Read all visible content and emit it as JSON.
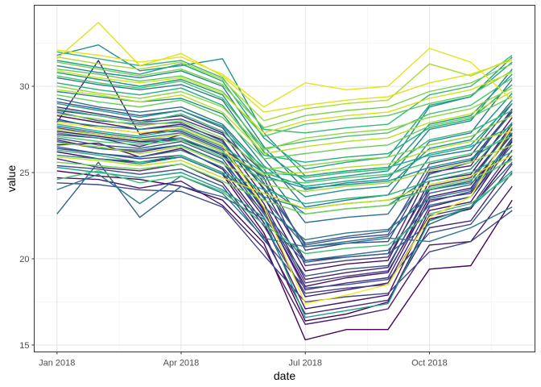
{
  "chart_data": {
    "type": "line",
    "title": "",
    "xlabel": "date",
    "ylabel": "value",
    "x_is_month_index": true,
    "x_months": [
      "2018-01",
      "2018-02",
      "2018-03",
      "2018-04",
      "2018-05",
      "2018-06",
      "2018-07",
      "2018-08",
      "2018-09",
      "2018-10",
      "2018-11",
      "2018-12"
    ],
    "x_ticks": [
      {
        "label": "Jan 2018",
        "x": 0
      },
      {
        "label": "Apr 2018",
        "x": 3
      },
      {
        "label": "Jul 2018",
        "x": 6
      },
      {
        "label": "Oct 2018",
        "x": 9
      }
    ],
    "x_minor_ticks": [
      1.5,
      4.5,
      7.5,
      10.5
    ],
    "xlim": [
      -0.55,
      11.55
    ],
    "ylim": [
      14.6,
      34.7
    ],
    "y_ticks": [
      15,
      20,
      25,
      30
    ],
    "y_minor_ticks": [
      17.5,
      22.5,
      27.5,
      32.5
    ],
    "grid": true,
    "legend": "none",
    "color_scale": "viridis",
    "series": [
      {
        "name": "s1",
        "color": "#440154",
        "values": [
          26.2,
          25.8,
          25.6,
          25.9,
          24.9,
          21.5,
          16.4,
          16.8,
          17.5,
          22.3,
          22.9,
          26.0
        ]
      },
      {
        "name": "s2",
        "color": "#450559",
        "values": [
          25.1,
          24.8,
          24.6,
          24.2,
          23.4,
          20.9,
          15.3,
          15.9,
          15.9,
          19.4,
          19.6,
          23.4
        ]
      },
      {
        "name": "s3",
        "color": "#460b5e",
        "values": [
          27.4,
          27.1,
          26.8,
          26.9,
          26.1,
          22.8,
          18.4,
          18.9,
          19.2,
          23.6,
          24.1,
          27.3
        ]
      },
      {
        "name": "s4",
        "color": "#471063",
        "values": [
          28.3,
          27.9,
          27.5,
          27.8,
          26.9,
          23.6,
          19.3,
          19.7,
          19.9,
          24.5,
          24.9,
          28.2
        ]
      },
      {
        "name": "s5",
        "color": "#471566",
        "values": [
          26.6,
          26.7,
          25.9,
          26.4,
          25.2,
          22.1,
          17.1,
          17.5,
          17.9,
          22.8,
          23.3,
          26.8
        ]
      },
      {
        "name": "s6",
        "color": "#481a6c",
        "values": [
          24.7,
          24.6,
          24.1,
          24.5,
          23.1,
          20.6,
          16.2,
          16.6,
          17.1,
          20.8,
          21.0,
          24.2
        ]
      },
      {
        "name": "s7",
        "color": "#481f70",
        "values": [
          27.9,
          31.5,
          27.2,
          27.6,
          26.6,
          23.2,
          18.8,
          19.2,
          19.5,
          24.0,
          24.5,
          27.8
        ]
      },
      {
        "name": "s8",
        "color": "#472374",
        "values": [
          26.9,
          26.4,
          26.2,
          26.6,
          25.6,
          22.4,
          17.8,
          18.2,
          18.6,
          23.0,
          23.6,
          26.9
        ]
      },
      {
        "name": "s9",
        "color": "#472777",
        "values": [
          28.8,
          28.4,
          28.0,
          28.3,
          27.3,
          24.0,
          19.9,
          20.1,
          20.3,
          25.0,
          25.4,
          28.7
        ]
      },
      {
        "name": "s10",
        "color": "#462b7a",
        "values": [
          25.8,
          25.3,
          25.1,
          25.5,
          24.4,
          21.3,
          16.8,
          17.2,
          17.6,
          21.8,
          22.2,
          25.5
        ]
      },
      {
        "name": "s11",
        "color": "#46307e",
        "values": [
          27.2,
          27.0,
          26.5,
          27.2,
          26.2,
          22.9,
          18.2,
          18.6,
          18.9,
          23.4,
          23.8,
          27.0
        ]
      },
      {
        "name": "s12",
        "color": "#453781",
        "values": [
          28.1,
          27.6,
          27.3,
          27.4,
          26.4,
          24.7,
          19.6,
          19.9,
          20.1,
          24.2,
          24.7,
          27.6
        ]
      },
      {
        "name": "s13",
        "color": "#433e85",
        "values": [
          26.4,
          26.1,
          25.8,
          26.0,
          25.0,
          21.9,
          18.0,
          18.3,
          18.5,
          22.5,
          23.0,
          26.3
        ]
      },
      {
        "name": "s14",
        "color": "#424186",
        "values": [
          27.6,
          27.2,
          26.9,
          27.0,
          26.0,
          23.0,
          18.6,
          19.0,
          19.3,
          23.3,
          23.9,
          27.5
        ]
      },
      {
        "name": "s15",
        "color": "#414487",
        "values": [
          28.6,
          28.3,
          27.9,
          28.1,
          27.2,
          25.0,
          20.5,
          20.9,
          21.0,
          25.2,
          25.7,
          28.6
        ]
      },
      {
        "name": "s16",
        "color": "#3e4989",
        "values": [
          24.4,
          24.3,
          24.0,
          23.9,
          23.0,
          20.2,
          17.5,
          17.8,
          18.0,
          20.4,
          21.0,
          22.8
        ]
      },
      {
        "name": "s17",
        "color": "#3c4f8a",
        "values": [
          29.1,
          28.7,
          28.3,
          28.6,
          27.6,
          24.4,
          20.8,
          21.2,
          21.4,
          25.5,
          26.0,
          29.0
        ]
      },
      {
        "name": "s18",
        "color": "#3b518b",
        "values": [
          25.4,
          25.2,
          24.9,
          25.2,
          24.2,
          21.1,
          18.3,
          18.5,
          18.8,
          21.5,
          22.0,
          25.0
        ]
      },
      {
        "name": "s19",
        "color": "#38588c",
        "values": [
          27.0,
          26.6,
          26.4,
          26.8,
          25.8,
          22.6,
          19.0,
          19.4,
          19.6,
          23.8,
          24.3,
          27.2
        ]
      },
      {
        "name": "s20",
        "color": "#355f8d",
        "values": [
          28.5,
          28.0,
          27.8,
          27.9,
          26.8,
          24.1,
          20.9,
          21.3,
          21.6,
          24.9,
          25.6,
          28.5
        ]
      },
      {
        "name": "s21",
        "color": "#33638d",
        "values": [
          22.6,
          25.6,
          22.4,
          24.2,
          23.6,
          22.3,
          19.8,
          20.1,
          20.3,
          22.0,
          23.0,
          25.6
        ]
      },
      {
        "name": "s22",
        "color": "#31688e",
        "values": [
          26.5,
          26.1,
          25.9,
          26.3,
          25.3,
          22.7,
          19.9,
          20.2,
          20.5,
          23.1,
          23.6,
          26.6
        ]
      },
      {
        "name": "s23",
        "color": "#2f6c8e",
        "values": [
          27.7,
          27.3,
          27.0,
          27.3,
          26.3,
          23.5,
          20.7,
          21.0,
          21.3,
          24.0,
          24.5,
          27.6
        ]
      },
      {
        "name": "s24",
        "color": "#2d718e",
        "values": [
          29.3,
          28.8,
          28.5,
          28.8,
          27.8,
          25.2,
          22.1,
          22.4,
          22.6,
          25.9,
          26.3,
          29.2
        ]
      },
      {
        "name": "s25",
        "color": "#2b758e",
        "values": [
          24.0,
          24.9,
          23.2,
          24.8,
          23.8,
          21.2,
          20.7,
          20.9,
          21.2,
          21.0,
          21.8,
          23.0
        ]
      },
      {
        "name": "s26",
        "color": "#2a788e",
        "values": [
          26.8,
          26.4,
          26.3,
          26.6,
          25.6,
          23.0,
          21.1,
          21.5,
          21.7,
          23.5,
          24.0,
          26.9
        ]
      },
      {
        "name": "s27",
        "color": "#287c8e",
        "values": [
          30.5,
          30.1,
          29.8,
          30.1,
          29.2,
          25.8,
          23.0,
          23.4,
          23.7,
          26.8,
          27.3,
          30.4
        ]
      },
      {
        "name": "s28",
        "color": "#26828e",
        "values": [
          28.0,
          27.7,
          27.5,
          27.7,
          26.7,
          24.3,
          22.6,
          22.9,
          23.1,
          24.7,
          25.2,
          27.9
        ]
      },
      {
        "name": "s29",
        "color": "#25858e",
        "values": [
          31.2,
          30.8,
          30.5,
          30.9,
          30.0,
          26.5,
          24.0,
          24.4,
          24.6,
          27.5,
          28.0,
          31.0
        ]
      },
      {
        "name": "s30",
        "color": "#23898e",
        "values": [
          26.0,
          25.8,
          25.5,
          25.9,
          24.9,
          23.6,
          22.9,
          23.2,
          23.4,
          24.0,
          24.4,
          25.8
        ]
      },
      {
        "name": "s31",
        "color": "#228d8d",
        "values": [
          29.7,
          29.4,
          29.1,
          29.3,
          28.4,
          25.4,
          23.6,
          24.0,
          24.2,
          26.4,
          26.9,
          29.6
        ]
      },
      {
        "name": "s32",
        "color": "#21908d",
        "values": [
          31.8,
          32.4,
          30.9,
          31.2,
          31.6,
          27.3,
          24.8,
          25.1,
          25.3,
          28.8,
          29.4,
          31.7
        ]
      },
      {
        "name": "s33",
        "color": "#1f948c",
        "values": [
          27.3,
          27.0,
          26.7,
          27.0,
          26.1,
          24.8,
          24.1,
          24.3,
          24.5,
          25.3,
          25.8,
          27.3
        ]
      },
      {
        "name": "s34",
        "color": "#1f988b",
        "values": [
          30.8,
          30.4,
          30.0,
          30.4,
          29.5,
          26.2,
          24.5,
          24.8,
          25.1,
          27.8,
          28.3,
          30.7
        ]
      },
      {
        "name": "s35",
        "color": "#1e9c89",
        "values": [
          25.3,
          25.0,
          24.7,
          25.0,
          24.0,
          22.4,
          16.6,
          17.0,
          17.4,
          22.2,
          23.0,
          25.1
        ]
      },
      {
        "name": "s36",
        "color": "#1fa088",
        "values": [
          29.0,
          28.6,
          28.2,
          28.6,
          27.7,
          25.0,
          24.2,
          24.5,
          24.8,
          26.1,
          26.6,
          29.0
        ]
      },
      {
        "name": "s37",
        "color": "#21a585",
        "values": [
          31.5,
          31.1,
          30.7,
          31.3,
          30.3,
          27.0,
          25.2,
          25.6,
          25.9,
          28.9,
          29.4,
          31.4
        ]
      },
      {
        "name": "s38",
        "color": "#25ab82",
        "values": [
          27.8,
          27.4,
          27.1,
          27.5,
          26.5,
          25.0,
          24.8,
          25.1,
          25.3,
          26.0,
          26.5,
          27.7
        ]
      },
      {
        "name": "s39",
        "color": "#29af7f",
        "values": [
          30.2,
          29.8,
          29.5,
          29.9,
          28.9,
          26.0,
          25.6,
          25.9,
          26.1,
          27.6,
          28.1,
          30.1
        ]
      },
      {
        "name": "s40",
        "color": "#2db27d",
        "values": [
          26.3,
          26.0,
          25.6,
          26.0,
          25.0,
          24.0,
          23.2,
          23.5,
          23.7,
          24.5,
          25.0,
          26.2
        ]
      },
      {
        "name": "s41",
        "color": "#35b779",
        "values": [
          32.0,
          31.6,
          31.2,
          31.5,
          30.5,
          27.5,
          27.3,
          27.6,
          27.8,
          29.5,
          30.0,
          31.8
        ]
      },
      {
        "name": "s42",
        "color": "#3bbb75",
        "values": [
          28.7,
          28.3,
          27.9,
          28.4,
          27.4,
          25.3,
          24.7,
          25.0,
          25.2,
          26.9,
          27.4,
          28.6
        ]
      },
      {
        "name": "s43",
        "color": "#40bd72",
        "values": [
          24.6,
          25.1,
          24.4,
          24.8,
          23.9,
          22.0,
          20.3,
          20.6,
          20.8,
          22.6,
          23.2,
          24.9
        ]
      },
      {
        "name": "s44",
        "color": "#4ac16d",
        "values": [
          30.6,
          30.2,
          29.9,
          30.3,
          29.3,
          26.4,
          26.8,
          27.1,
          27.3,
          28.4,
          28.9,
          30.5
        ]
      },
      {
        "name": "s45",
        "color": "#52c569",
        "values": [
          27.1,
          26.8,
          26.6,
          26.9,
          25.9,
          24.6,
          24.4,
          24.7,
          24.9,
          25.6,
          26.1,
          27.1
        ]
      },
      {
        "name": "s46",
        "color": "#5ec962",
        "values": [
          31.0,
          30.7,
          30.3,
          30.6,
          29.7,
          27.1,
          27.8,
          28.1,
          28.3,
          29.0,
          29.5,
          30.9
        ]
      },
      {
        "name": "s47",
        "color": "#67cc5c",
        "values": [
          29.5,
          29.1,
          28.8,
          29.2,
          28.2,
          25.8,
          26.1,
          26.4,
          26.6,
          27.7,
          28.2,
          29.4
        ]
      },
      {
        "name": "s48",
        "color": "#70cf57",
        "values": [
          25.6,
          25.4,
          25.2,
          25.5,
          24.5,
          23.4,
          22.6,
          22.9,
          23.1,
          24.1,
          24.6,
          25.7
        ]
      },
      {
        "name": "s49",
        "color": "#7ad151",
        "values": [
          31.4,
          31.0,
          30.6,
          31.0,
          30.1,
          27.6,
          28.3,
          28.6,
          28.8,
          29.7,
          30.2,
          31.3
        ]
      },
      {
        "name": "s50",
        "color": "#86d549",
        "values": [
          28.4,
          28.1,
          27.7,
          28.0,
          27.0,
          25.2,
          25.4,
          25.7,
          25.9,
          26.6,
          27.1,
          28.3
        ]
      },
      {
        "name": "s51",
        "color": "#91d742",
        "values": [
          30.0,
          29.6,
          29.3,
          29.7,
          28.8,
          26.3,
          27.0,
          27.3,
          27.5,
          28.2,
          28.7,
          29.9
        ]
      },
      {
        "name": "s52",
        "color": "#9fda3a",
        "values": [
          26.7,
          26.5,
          26.1,
          26.5,
          25.5,
          24.3,
          23.9,
          24.2,
          24.4,
          25.1,
          25.6,
          26.6
        ]
      },
      {
        "name": "s53",
        "color": "#a8db34",
        "values": [
          31.7,
          31.3,
          31.0,
          31.4,
          30.4,
          28.0,
          28.7,
          29.0,
          29.2,
          31.3,
          30.6,
          31.6
        ]
      },
      {
        "name": "s54",
        "color": "#b5de2b",
        "values": [
          27.5,
          27.2,
          26.9,
          27.2,
          26.2,
          24.9,
          25.0,
          25.3,
          25.5,
          26.3,
          26.8,
          27.4
        ]
      },
      {
        "name": "s55",
        "color": "#bddf26",
        "values": [
          29.8,
          29.5,
          29.1,
          29.5,
          28.5,
          26.1,
          26.5,
          26.8,
          27.0,
          27.9,
          28.4,
          29.7
        ]
      },
      {
        "name": "s56",
        "color": "#c8e020",
        "values": [
          25.9,
          25.7,
          25.4,
          25.7,
          24.7,
          23.8,
          22.9,
          23.2,
          23.4,
          24.3,
          24.8,
          26.0
        ]
      },
      {
        "name": "s57",
        "color": "#d2e21b",
        "values": [
          30.9,
          30.5,
          30.2,
          30.5,
          29.6,
          27.3,
          28.0,
          28.3,
          28.5,
          29.3,
          29.8,
          30.8
        ]
      },
      {
        "name": "s58",
        "color": "#dde318",
        "values": [
          31.6,
          33.7,
          31.2,
          31.9,
          30.6,
          28.5,
          28.9,
          29.2,
          29.4,
          30.2,
          30.7,
          31.5
        ]
      },
      {
        "name": "s59",
        "color": "#e5e419",
        "values": [
          32.1,
          31.8,
          31.4,
          31.7,
          30.7,
          28.8,
          30.2,
          29.8,
          30.0,
          32.2,
          31.4,
          29.2
        ]
      },
      {
        "name": "s60",
        "color": "#fde725",
        "values": [
          27.9,
          27.6,
          27.3,
          27.6,
          26.6,
          23.0,
          17.4,
          17.9,
          18.5,
          22.4,
          23.6,
          27.7
        ]
      }
    ]
  }
}
